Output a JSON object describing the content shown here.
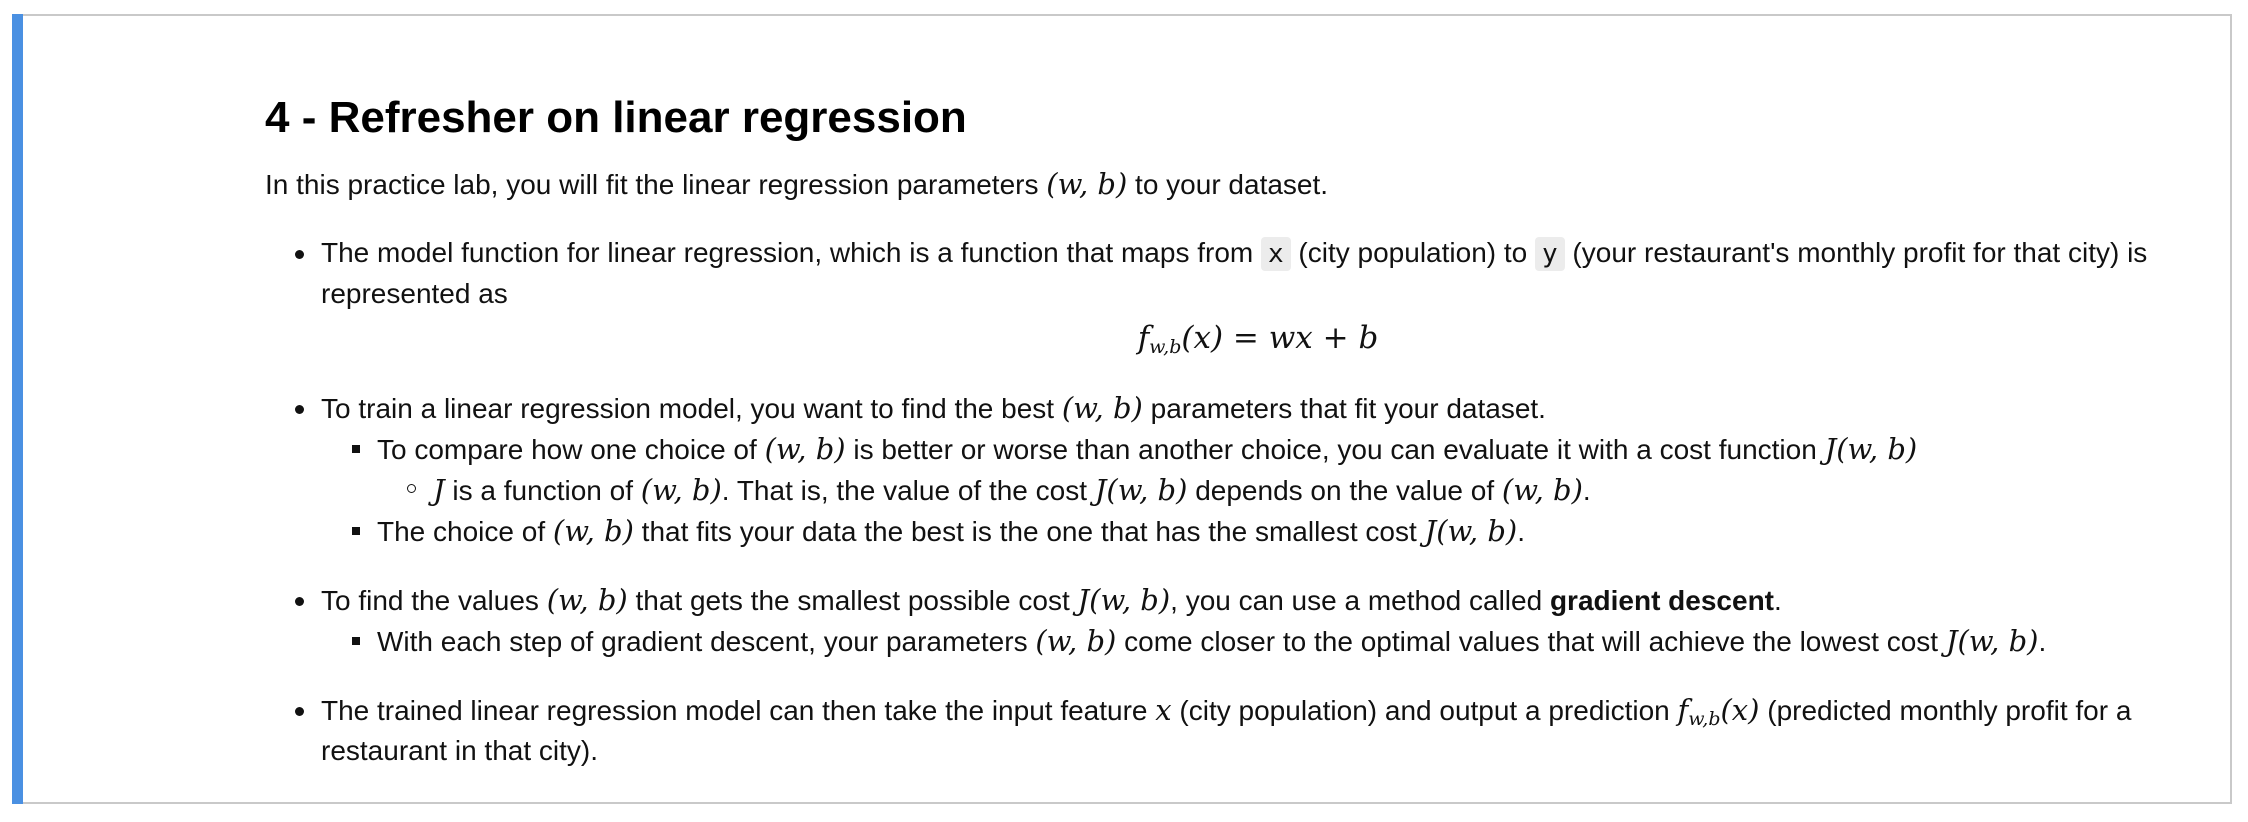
{
  "heading": "4 - Refresher on linear regression",
  "intro": {
    "before": "In this practice lab, you will fit the linear regression parameters ",
    "math": "(w, b)",
    "after": " to your dataset."
  },
  "bullet1": {
    "t1": "The model function for linear regression, which is a function that maps from ",
    "code1": "x",
    "t2": " (city population) to ",
    "code2": "y",
    "t3": " (your restaurant's monthly profit for that city) is represented as",
    "eq_f": "f",
    "eq_sub": "w,b",
    "eq_rest": "(x) = wx + b"
  },
  "bullet2": {
    "t1": "To train a linear regression model, you want to find the best ",
    "m1": "(w, b)",
    "t2": " parameters that fit your dataset.",
    "sub1": {
      "t1": "To compare how one choice of ",
      "m1": "(w, b)",
      "t2": " is better or worse than another choice, you can evaluate it with a cost function ",
      "m2": "J(w, b)",
      "subsub": {
        "m1": "J",
        "t1": " is a function of ",
        "m2": "(w, b)",
        "t2": ". That is, the value of the cost ",
        "m3": "J(w, b)",
        "t3": " depends on the value of ",
        "m4": "(w, b)",
        "t4": "."
      }
    },
    "sub2": {
      "t1": "The choice of ",
      "m1": "(w, b)",
      "t2": " that fits your data the best is the one that has the smallest cost ",
      "m2": "J(w, b)",
      "t3": "."
    }
  },
  "bullet3": {
    "t1": "To find the values ",
    "m1": "(w, b)",
    "t2": " that gets the smallest possible cost ",
    "m2": "J(w, b)",
    "t3": ", you can use a method called ",
    "bold": "gradient descent",
    "t4": ".",
    "sub1": {
      "t1": "With each step of gradient descent, your parameters ",
      "m1": "(w, b)",
      "t2": " come closer to the optimal values that will achieve the lowest cost ",
      "m2": "J(w, b)",
      "t3": "."
    }
  },
  "bullet4": {
    "t1": "The trained linear regression model can then take the input feature ",
    "m1": "x",
    "t2": " (city population) and output a prediction ",
    "m2_f": "f",
    "m2_sub": "w,b",
    "m2_rest": "(x)",
    "t3": " (predicted monthly profit for a restaurant in that city)."
  },
  "colors": {
    "accent_bar": "#4a90e2",
    "border": "#c9c9c9",
    "code_bg": "#ececec"
  }
}
